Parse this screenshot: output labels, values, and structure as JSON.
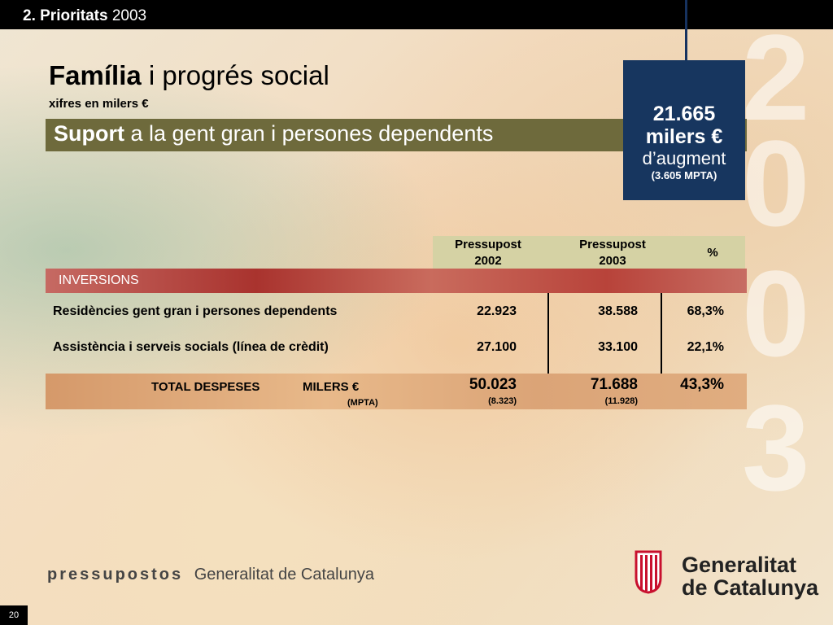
{
  "header": {
    "section_bold": "2. Prioritats",
    "section_year": "2003"
  },
  "background_year_digits": [
    "2",
    "0",
    "0",
    "3"
  ],
  "title": {
    "bold": "Família",
    "rest": "i progrés social",
    "subtitle": "xifres en milers €"
  },
  "band": {
    "bold": "Suport",
    "rest": "a la gent gran i persones dependents"
  },
  "infobox": {
    "amount": "21.665",
    "unit": "milers €",
    "label": "d’augment",
    "mpta": "(3.605 MPTA)"
  },
  "table": {
    "headers": [
      {
        "line1": "Pressupost",
        "line2": "2002"
      },
      {
        "line1": "Pressupost",
        "line2": "2003"
      },
      {
        "line1": "%",
        "line2": ""
      }
    ],
    "section_label": "INVERSIONS",
    "rows": [
      {
        "label": "Residències gent gran i persones dependents",
        "v2002": "22.923",
        "v2003": "38.588",
        "pct": "68,3%"
      },
      {
        "label": "Assistència i serveis socials (línea de crèdit)",
        "v2002": "27.100",
        "v2003": "33.100",
        "pct": "22,1%"
      }
    ],
    "total": {
      "label": "TOTAL DESPESES",
      "unit": "MILERS €",
      "unit2": "(MPTA)",
      "v2002": "50.023",
      "v2003": "71.688",
      "pct": "43,3%",
      "mpta2002": "(8.323)",
      "mpta2003": "(11.928)"
    }
  },
  "footer": {
    "left_bold": "pressupostos",
    "left_rest": "Generalitat de Catalunya",
    "logo_line1": "Generalitat",
    "logo_line2": "de Catalunya"
  },
  "page_number": "20"
}
